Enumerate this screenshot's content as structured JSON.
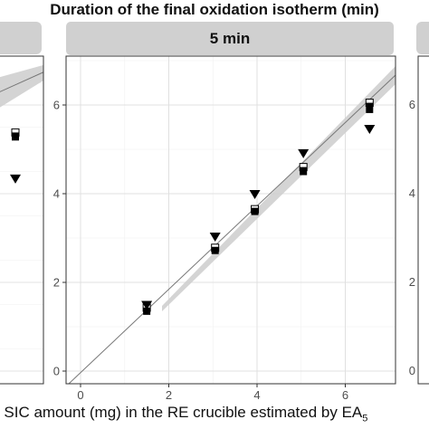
{
  "header": {
    "title": "Duration of the final oxidation isotherm (min)",
    "panel_label": "5 min"
  },
  "chart_data": {
    "type": "scatter",
    "title": "Duration of the final oxidation isotherm (min)",
    "facet": "5 min",
    "xlabel": "r SIC amount (mg) in the RE crucible estimated by EA",
    "xlabel_subscript": "5",
    "ylabel": "",
    "xlim": [
      -0.4,
      7.0
    ],
    "ylim": [
      -0.2,
      7.1
    ],
    "x_ticks": [
      0,
      2,
      4,
      6
    ],
    "y_ticks": [
      0,
      2,
      4,
      6
    ],
    "grid": true,
    "reference_line": {
      "slope": 1,
      "intercept": 0
    },
    "series": [
      {
        "marker": "square-half-filled",
        "points": [
          [
            1.5,
            1.43
          ],
          [
            3.05,
            2.78
          ],
          [
            3.95,
            3.65
          ],
          [
            5.05,
            4.6
          ],
          [
            6.55,
            6.05
          ]
        ]
      },
      {
        "marker": "square-filled",
        "points": [
          [
            1.5,
            1.35
          ],
          [
            3.05,
            2.72
          ],
          [
            3.95,
            3.6
          ],
          [
            5.05,
            4.5
          ],
          [
            6.55,
            5.9
          ]
        ]
      },
      {
        "marker": "triangle-down",
        "points": [
          [
            1.5,
            1.48
          ],
          [
            3.05,
            3.02
          ],
          [
            3.95,
            3.98
          ],
          [
            5.05,
            4.9
          ],
          [
            6.55,
            5.45
          ]
        ]
      }
    ],
    "left_panel_partial": {
      "y_ticks": [
        0,
        2,
        4,
        6
      ],
      "points": [
        {
          "marker": "square-half-filled",
          "y": 5.38
        },
        {
          "marker": "square-filled",
          "y": 5.28
        },
        {
          "marker": "triangle-down",
          "y": 4.33
        }
      ]
    },
    "right_panel_partial": {
      "y_ticks": [
        0,
        2,
        4,
        6
      ]
    }
  }
}
